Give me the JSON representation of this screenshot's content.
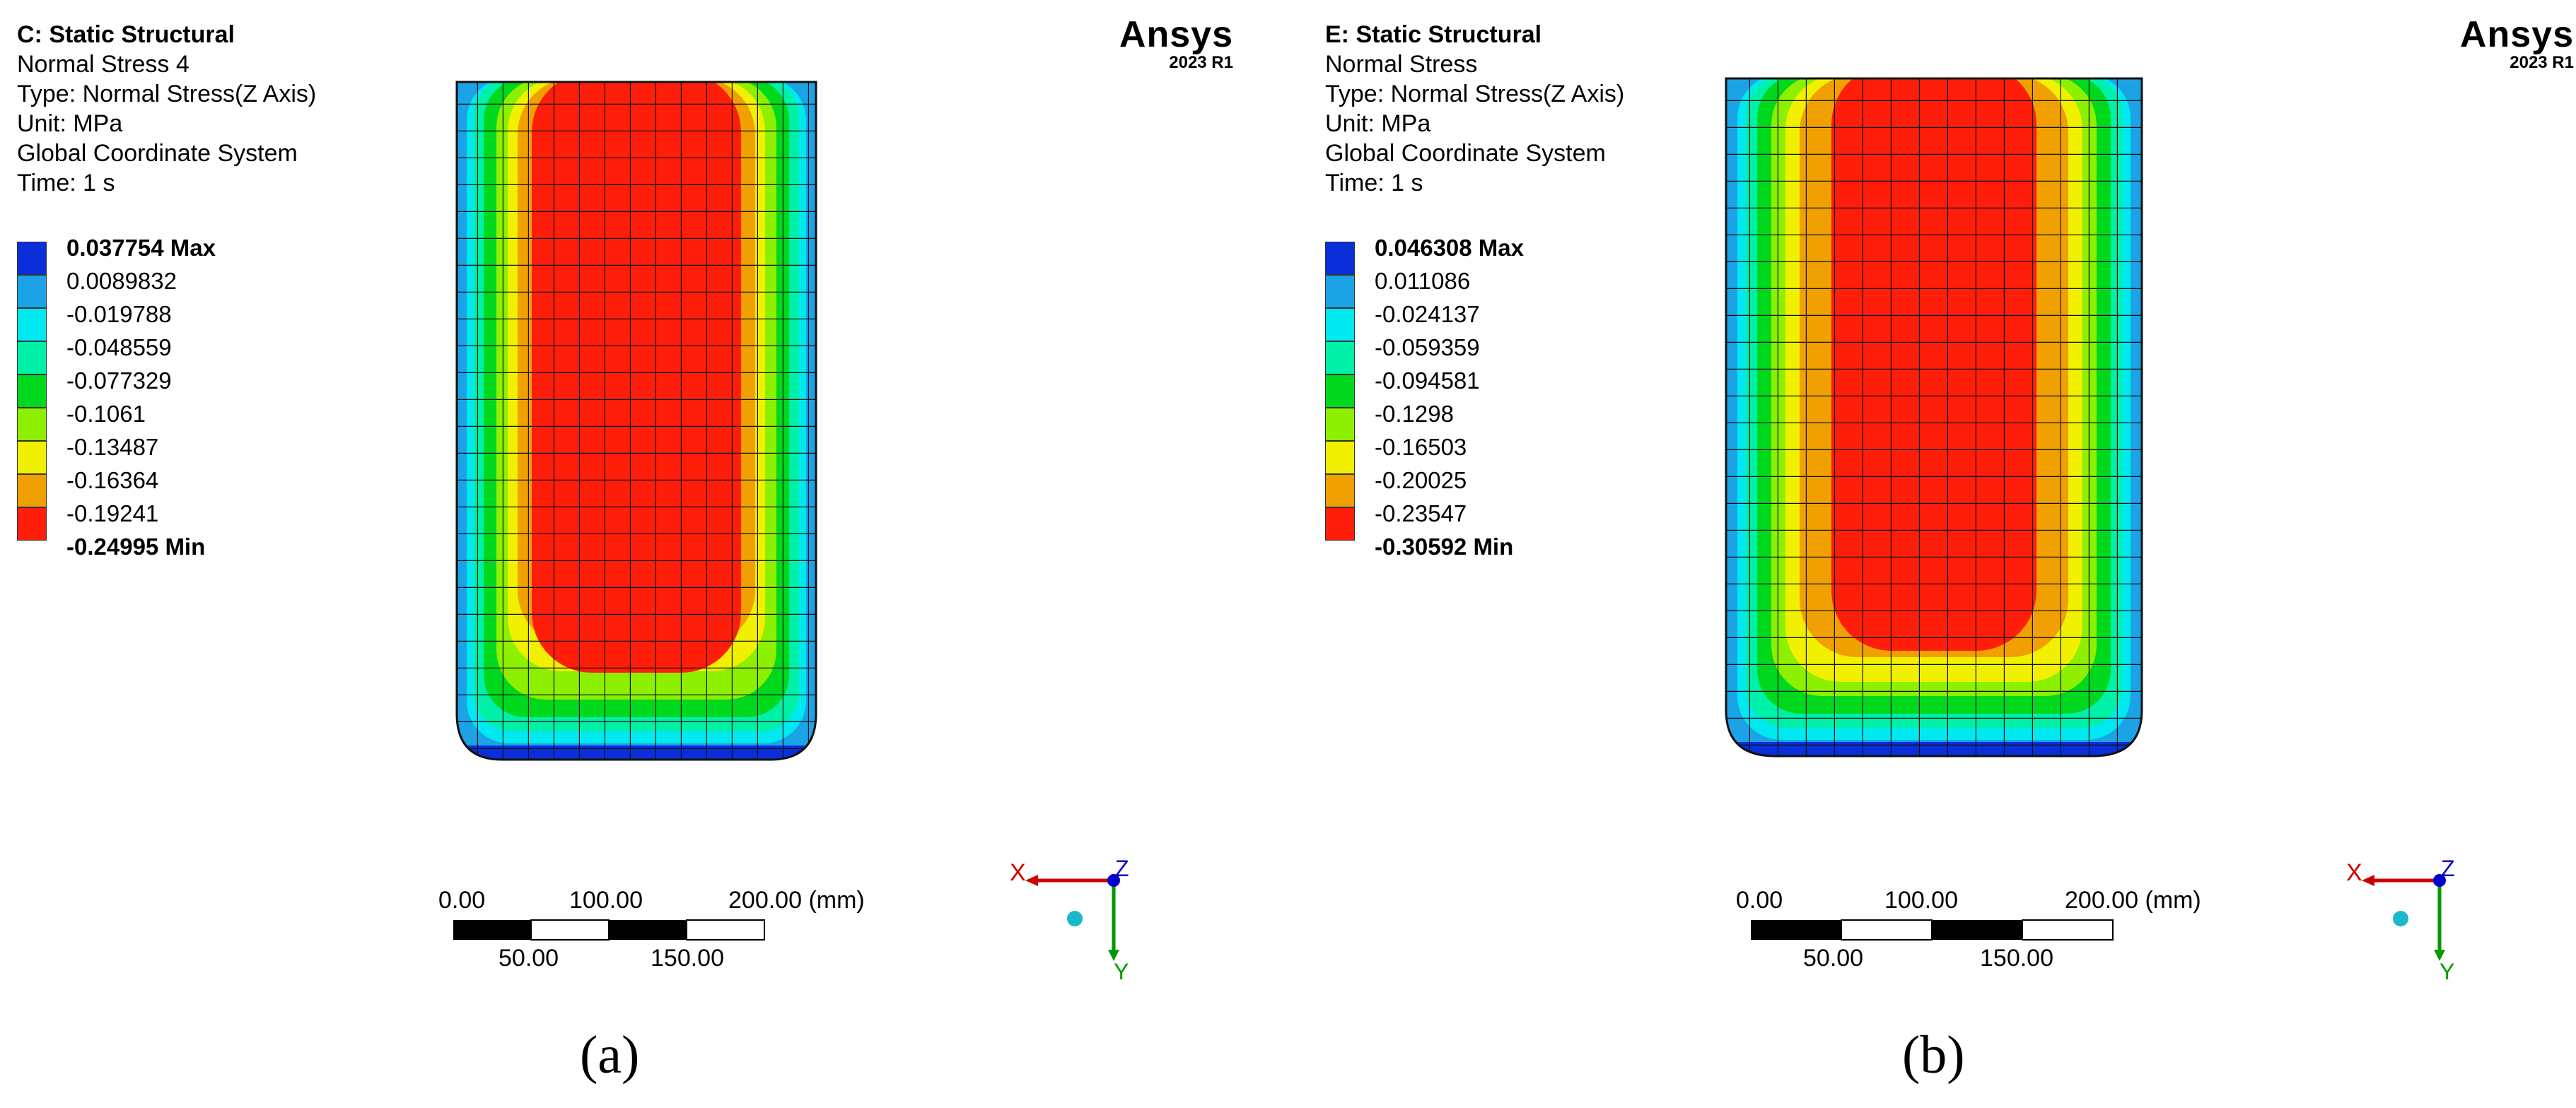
{
  "panels": [
    {
      "id": "a",
      "info": {
        "analysis": "C: Static Structural",
        "result": "Normal Stress 4",
        "type": "Type: Normal Stress(Z Axis)",
        "unit": "Unit: MPa",
        "coord": "Global Coordinate System",
        "time": "Time: 1 s"
      },
      "legend": [
        "0.037754 Max",
        "0.0089832",
        "-0.019788",
        "-0.048559",
        "-0.077329",
        "-0.1061",
        "-0.13487",
        "-0.16364",
        "-0.19241",
        "-0.24995 Min"
      ],
      "brand": {
        "name": "Ansys",
        "version": "2023 R1"
      },
      "scale": {
        "top": [
          "0.00",
          "100.00",
          "200.00 (mm)"
        ],
        "bottom": [
          "50.00",
          "150.00"
        ]
      },
      "triad": {
        "x": "X",
        "y": "Y",
        "z": "Z"
      },
      "caption": "(a)"
    },
    {
      "id": "b",
      "info": {
        "analysis": "E: Static Structural",
        "result": "Normal Stress",
        "type": "Type: Normal Stress(Z Axis)",
        "unit": "Unit: MPa",
        "coord": "Global Coordinate System",
        "time": "Time: 1 s"
      },
      "legend": [
        "0.046308 Max",
        "0.011086",
        "-0.024137",
        "-0.059359",
        "-0.094581",
        "-0.1298",
        "-0.16503",
        "-0.20025",
        "-0.23547",
        "-0.30592 Min"
      ],
      "brand": {
        "name": "Ansys",
        "version": "2023 R1"
      },
      "scale": {
        "top": [
          "0.00",
          "100.00",
          "200.00 (mm)"
        ],
        "bottom": [
          "50.00",
          "150.00"
        ]
      },
      "triad": {
        "x": "X",
        "y": "Y",
        "z": "Z"
      },
      "caption": "(b)"
    }
  ],
  "colors": {
    "contour": [
      "#0a2ed8",
      "#1ba3e6",
      "#00e8f0",
      "#00f0a8",
      "#00d81e",
      "#8cf000",
      "#f0f000",
      "#f0a000",
      "#ff1e0a"
    ],
    "triad_x": "#cc0000",
    "triad_y": "#009900",
    "triad_z": "#0000cc"
  }
}
